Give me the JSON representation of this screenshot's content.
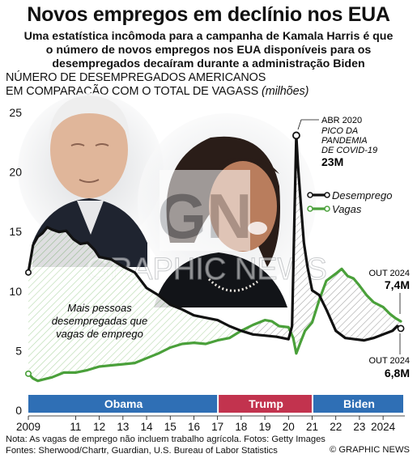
{
  "header": {
    "title": "Novos empregos em declínio nos EUA",
    "subtitle_lines": [
      "Uma estatística incômoda para a campanha de Kamala Harris é que",
      "o número de novos empregos nos EUA disponíveis para os",
      "desempregados decaíram durante a administração Biden"
    ]
  },
  "chart_data": {
    "type": "line",
    "ytitle_lines": [
      "NÚMERO DE DESEMPREGADOS AMERICANOS",
      "EM COMPARAÇÃO COM O TOTAL DE VAGASS"
    ],
    "ytitle_unit": "(milhões)",
    "ylim": [
      0,
      25
    ],
    "yticks": [
      0,
      5,
      10,
      15,
      20,
      25
    ],
    "xlim": [
      2009.0,
      2024.92
    ],
    "xticks": [
      {
        "value": 2009,
        "label": "2009"
      },
      {
        "value": 2011,
        "label": "11"
      },
      {
        "value": 2012,
        "label": "12"
      },
      {
        "value": 2013,
        "label": "13"
      },
      {
        "value": 2014,
        "label": "14"
      },
      {
        "value": 2015,
        "label": "15"
      },
      {
        "value": 2016,
        "label": "16"
      },
      {
        "value": 2017,
        "label": "17"
      },
      {
        "value": 2018,
        "label": "18"
      },
      {
        "value": 2019,
        "label": "19"
      },
      {
        "value": 2020,
        "label": "20"
      },
      {
        "value": 2021,
        "label": "21"
      },
      {
        "value": 2022,
        "label": "22"
      },
      {
        "value": 2023,
        "label": "23"
      },
      {
        "value": 2024,
        "label": "2024"
      }
    ],
    "grid": false,
    "legend_position": "right",
    "series": [
      {
        "name": "Desemprego",
        "color": "#111111",
        "x": [
          2009.0,
          2009.2,
          2009.4,
          2009.6,
          2009.8,
          2010.0,
          2010.3,
          2010.6,
          2010.9,
          2011.2,
          2011.5,
          2011.8,
          2012.0,
          2012.5,
          2013.0,
          2013.5,
          2014.0,
          2014.5,
          2015.0,
          2015.5,
          2016.0,
          2016.5,
          2017.0,
          2017.5,
          2018.0,
          2018.5,
          2019.0,
          2019.5,
          2020.0,
          2020.15,
          2020.25,
          2020.33,
          2020.4,
          2020.5,
          2020.65,
          2020.8,
          2021.0,
          2021.3,
          2021.6,
          2022.0,
          2022.4,
          2022.8,
          2023.2,
          2023.6,
          2024.0,
          2024.4,
          2024.6,
          2024.75
        ],
        "values": [
          11.5,
          13.8,
          14.5,
          14.8,
          15.3,
          15.1,
          14.9,
          15.0,
          14.3,
          13.9,
          14.0,
          13.4,
          12.8,
          12.6,
          12.0,
          11.5,
          10.2,
          9.6,
          8.8,
          8.4,
          7.9,
          7.7,
          7.5,
          7.0,
          6.6,
          6.3,
          6.2,
          6.1,
          5.9,
          7.0,
          16.0,
          23.0,
          20.5,
          17.8,
          14.0,
          12.0,
          10.0,
          9.6,
          8.4,
          6.6,
          6.0,
          5.9,
          5.8,
          6.0,
          6.3,
          6.6,
          7.0,
          6.8
        ]
      },
      {
        "name": "Vagas",
        "color": "#4aa03a",
        "x": [
          2009.0,
          2009.2,
          2009.4,
          2009.6,
          2009.8,
          2010.0,
          2010.5,
          2011.0,
          2011.5,
          2012.0,
          2012.5,
          2013.0,
          2013.5,
          2014.0,
          2014.5,
          2015.0,
          2015.5,
          2016.0,
          2016.5,
          2017.0,
          2017.5,
          2018.0,
          2018.5,
          2019.0,
          2019.3,
          2019.6,
          2020.0,
          2020.2,
          2020.33,
          2020.5,
          2020.7,
          2021.0,
          2021.3,
          2021.6,
          2022.0,
          2022.25,
          2022.5,
          2022.75,
          2023.0,
          2023.3,
          2023.6,
          2024.0,
          2024.3,
          2024.5,
          2024.75
        ],
        "values": [
          3.0,
          2.6,
          2.4,
          2.5,
          2.6,
          2.7,
          3.1,
          3.1,
          3.3,
          3.6,
          3.7,
          3.8,
          3.9,
          4.3,
          4.7,
          5.2,
          5.5,
          5.6,
          5.5,
          5.8,
          6.0,
          6.6,
          7.1,
          7.5,
          7.4,
          7.0,
          6.9,
          6.0,
          4.7,
          5.6,
          6.6,
          7.3,
          9.2,
          10.8,
          11.4,
          11.8,
          11.2,
          11.0,
          10.4,
          9.6,
          9.0,
          8.6,
          8.0,
          7.7,
          7.4
        ]
      }
    ],
    "eras": [
      {
        "label": "Obama",
        "from": 2009.0,
        "to": 2017.05,
        "color": "#2f6fb5"
      },
      {
        "label": "Trump",
        "from": 2017.05,
        "to": 2021.05,
        "color": "#c2334e"
      },
      {
        "label": "Biden",
        "from": 2021.05,
        "to": 2024.92,
        "color": "#2f6fb5"
      }
    ],
    "annotations": {
      "peak": {
        "date": "ABR 2020",
        "lines": [
          "PICO DA",
          "PANDEMIA",
          "DE COVID-19"
        ],
        "value": "23M",
        "x": 2020.33,
        "y": 23.0
      },
      "vagas_end": {
        "date": "OUT 2024",
        "value": "7,4M",
        "x": 2024.75,
        "y": 7.4
      },
      "desemprego_end": {
        "date": "OUT 2024",
        "value": "6,8M",
        "x": 2024.75,
        "y": 6.8
      },
      "gap_note": [
        "Mais pessoas",
        "desempregadas que",
        "vagas de emprego"
      ]
    }
  },
  "watermark": {
    "monogram": "GN",
    "text": "GRAPHIC NEWS"
  },
  "footer": {
    "notes": [
      "Nota: As vagas de emprego não incluem trabalho agrícola. Fotos: Getty Images",
      "Fontes: Sherwood/Chartr, Guardian, U.S. Bureau of Labor Statistics"
    ],
    "credit": "© GRAPHIC NEWS"
  },
  "photos": [
    {
      "name": "biden-photo",
      "skin": "#e0b69a",
      "hair": "#eeeeee",
      "suit": "#1f2430"
    },
    {
      "name": "harris-photo",
      "skin": "#b97d5d",
      "hair": "#2a1d18",
      "suit": "#121418"
    }
  ]
}
